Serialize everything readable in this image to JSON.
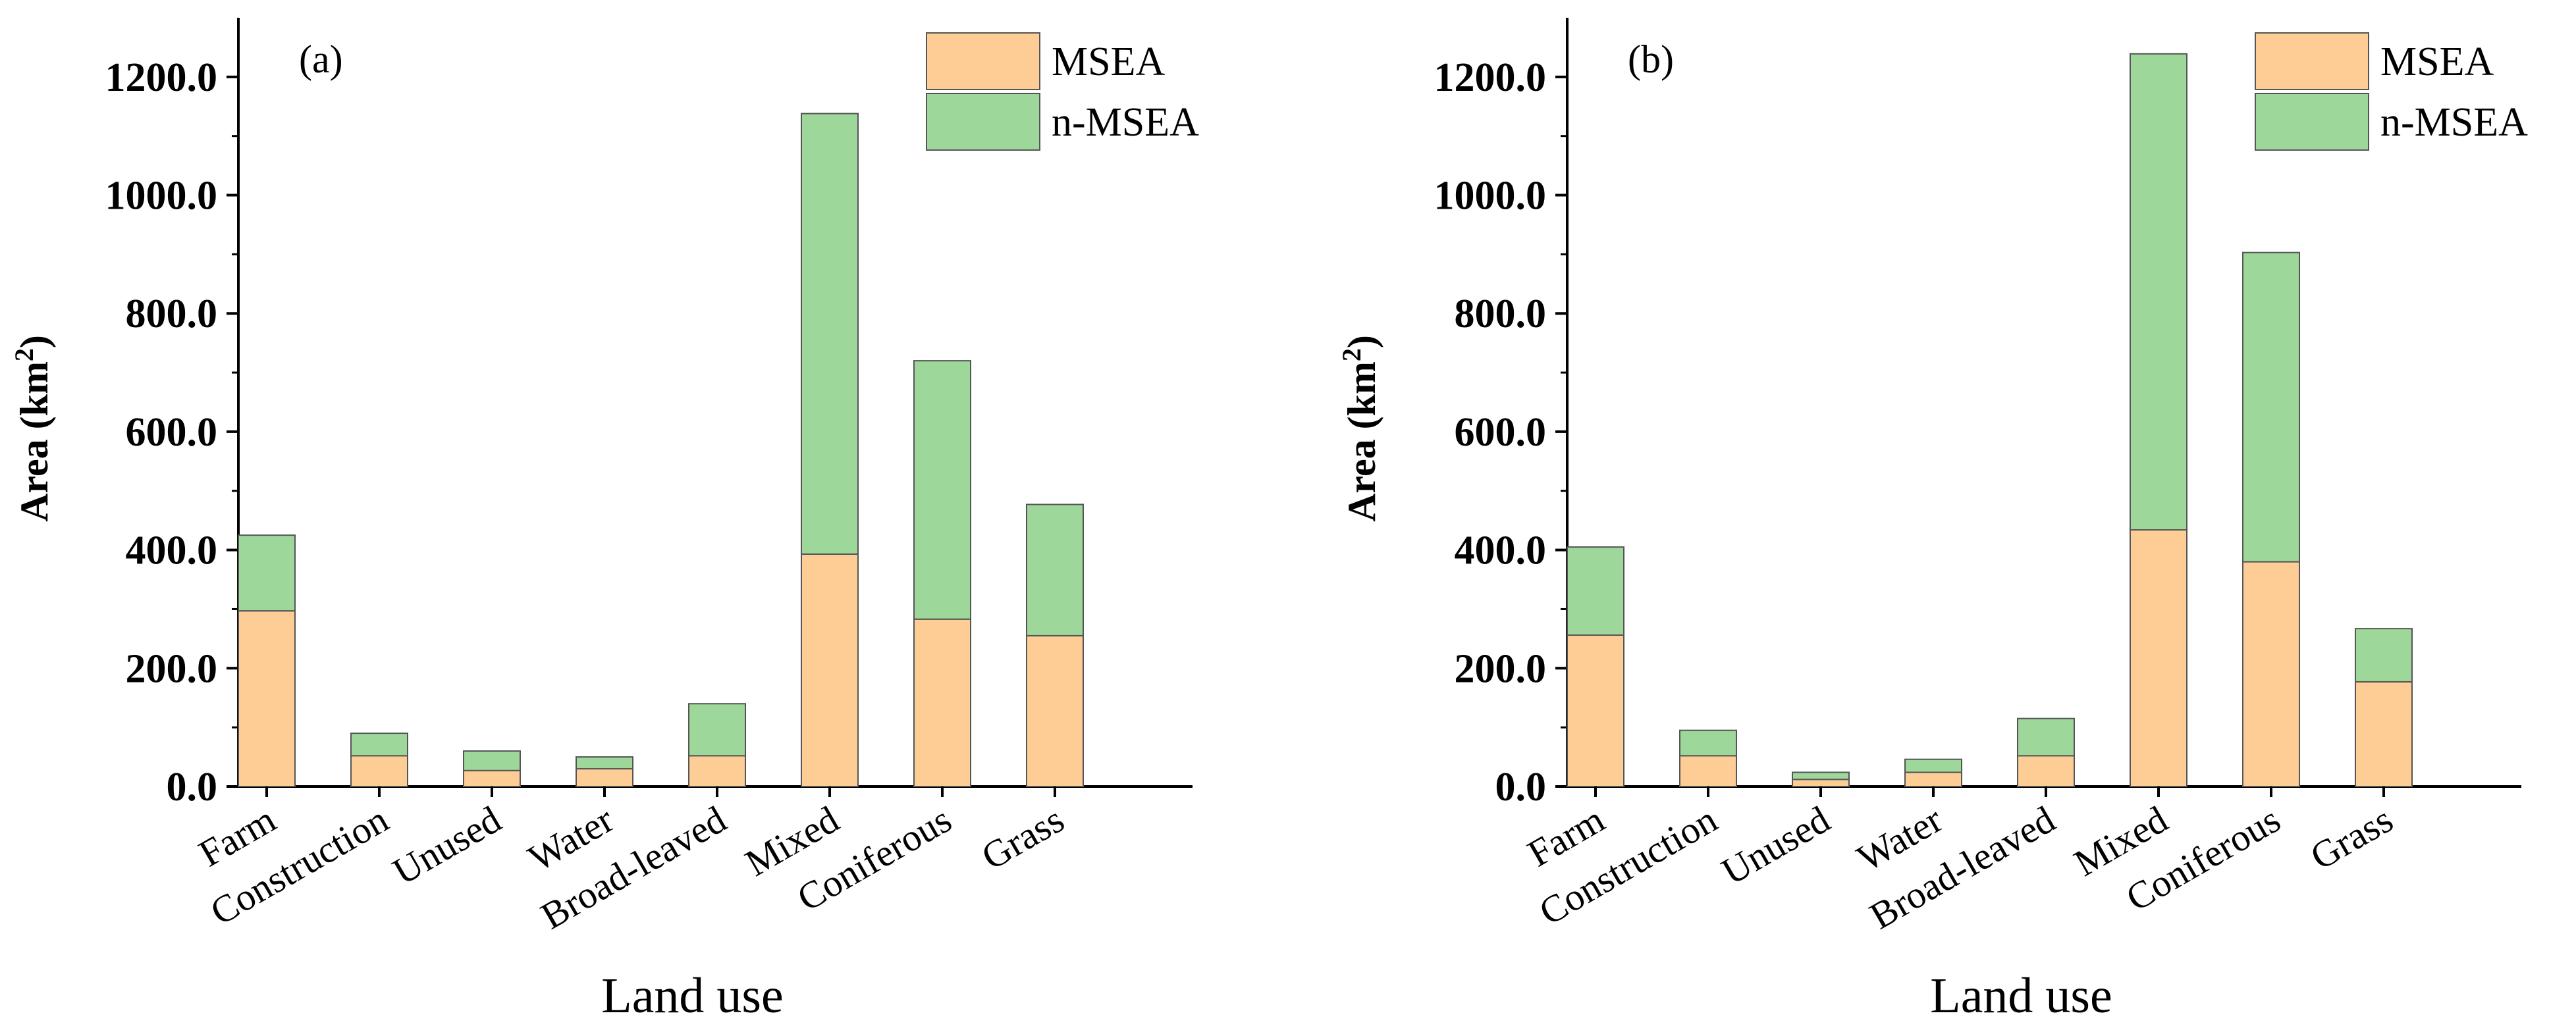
{
  "chart_data": [
    {
      "type": "bar",
      "stacked": true,
      "panel_label": "(a)",
      "categories": [
        "Farm",
        "Construction",
        "Unused",
        "Water",
        "Broad-leaved",
        "Mixed",
        "Coniferous",
        "Grass"
      ],
      "series": [
        {
          "name": "MSEA",
          "color": "#FECD96",
          "values": [
            297,
            52,
            27,
            30,
            52,
            393,
            283,
            255
          ]
        },
        {
          "name": "n-MSEA",
          "color": "#9ED79A",
          "values": [
            128,
            38,
            33,
            20,
            88,
            745,
            437,
            222
          ]
        }
      ],
      "xlabel": "Land use",
      "ylabel": "Area (km",
      "ylabel_sup": "2",
      "ylabel_end": ")",
      "ylim": [
        0,
        1300
      ],
      "yticks": [
        0,
        200,
        400,
        600,
        800,
        1000,
        1200
      ],
      "ytick_labels": [
        "0.0",
        "200.0",
        "400.0",
        "600.0",
        "800.0",
        "1000.0",
        "1200.0"
      ],
      "legend": "top-right",
      "grid": false
    },
    {
      "type": "bar",
      "stacked": true,
      "panel_label": "(b)",
      "categories": [
        "Farm",
        "Construction",
        "Unused",
        "Water",
        "Broad-leaved",
        "Mixed",
        "Coniferous",
        "Grass"
      ],
      "series": [
        {
          "name": "MSEA",
          "color": "#FECD96",
          "values": [
            256,
            52,
            12,
            24,
            52,
            434,
            380,
            177
          ]
        },
        {
          "name": "n-MSEA",
          "color": "#9ED79A",
          "values": [
            149,
            43,
            12,
            22,
            63,
            805,
            523,
            90
          ]
        }
      ],
      "xlabel": "Land use",
      "ylabel": "Area (km",
      "ylabel_sup": "2",
      "ylabel_end": ")",
      "ylim": [
        0,
        1300
      ],
      "yticks": [
        0,
        200,
        400,
        600,
        800,
        1000,
        1200
      ],
      "ytick_labels": [
        "0.0",
        "200.0",
        "400.0",
        "600.0",
        "800.0",
        "1000.0",
        "1200.0"
      ],
      "legend": "top-right",
      "grid": false
    }
  ]
}
